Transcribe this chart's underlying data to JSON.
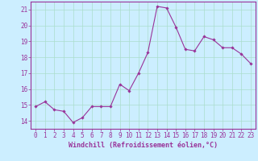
{
  "x": [
    0,
    1,
    2,
    3,
    4,
    5,
    6,
    7,
    8,
    9,
    10,
    11,
    12,
    13,
    14,
    15,
    16,
    17,
    18,
    19,
    20,
    21,
    22,
    23
  ],
  "y": [
    14.9,
    15.2,
    14.7,
    14.6,
    13.9,
    14.2,
    14.9,
    14.9,
    14.9,
    16.3,
    15.9,
    17.0,
    18.3,
    21.2,
    21.1,
    19.9,
    18.5,
    18.4,
    19.3,
    19.1,
    18.6,
    18.6,
    18.2,
    17.6
  ],
  "line_color": "#993399",
  "marker_color": "#993399",
  "bg_color": "#cceeff",
  "grid_color": "#aaddcc",
  "axis_color": "#993399",
  "tick_color": "#993399",
  "xlabel": "Windchill (Refroidissement éolien,°C)",
  "ylim": [
    13.5,
    21.5
  ],
  "xlim": [
    -0.5,
    23.5
  ],
  "yticks": [
    14,
    15,
    16,
    17,
    18,
    19,
    20,
    21
  ],
  "xticks": [
    0,
    1,
    2,
    3,
    4,
    5,
    6,
    7,
    8,
    9,
    10,
    11,
    12,
    13,
    14,
    15,
    16,
    17,
    18,
    19,
    20,
    21,
    22,
    23
  ],
  "font_color": "#993399",
  "font_size": 5.5,
  "label_font_size": 6.0
}
